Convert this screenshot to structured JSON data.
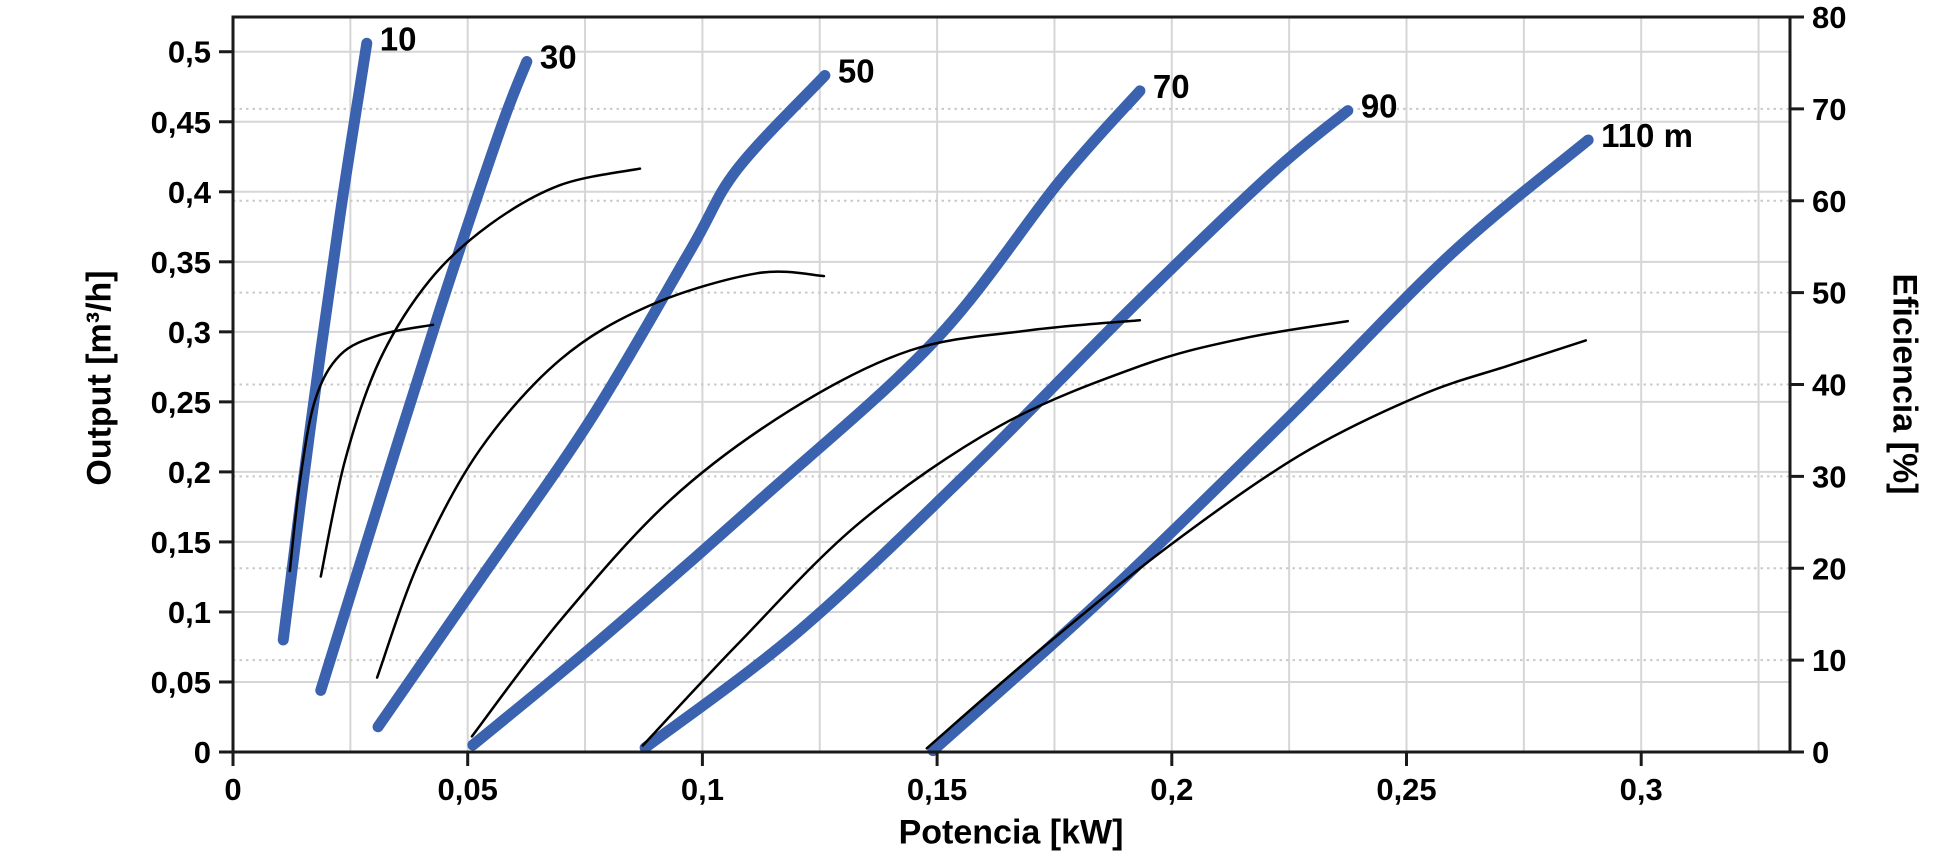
{
  "page": {
    "background": "#ffffff"
  },
  "colors": {
    "pump_curve": "#3A62AE",
    "efficiency_curve": "#000000",
    "frame": "#1a1a1a",
    "grid_solid": "#d6d6d6",
    "grid_dotted": "#c9c9c9",
    "text": "#000000"
  },
  "axes": {
    "x": {
      "title": "Potencia [kW]",
      "min": 0,
      "max": 0.3317,
      "ticks": [
        {
          "v": 0.0,
          "label": "0"
        },
        {
          "v": 0.05,
          "label": "0,05"
        },
        {
          "v": 0.1,
          "label": "0,1"
        },
        {
          "v": 0.15,
          "label": "0,15"
        },
        {
          "v": 0.2,
          "label": "0,2"
        },
        {
          "v": 0.25,
          "label": "0,25"
        },
        {
          "v": 0.3,
          "label": "0,3"
        }
      ],
      "minor_grid_step": 0.025
    },
    "y_left": {
      "title": "Output [m³/h]",
      "min": 0,
      "max": 0.5248,
      "ticks": [
        {
          "v": 0.0,
          "label": "0"
        },
        {
          "v": 0.05,
          "label": "0,05"
        },
        {
          "v": 0.1,
          "label": "0,1"
        },
        {
          "v": 0.15,
          "label": "0,15"
        },
        {
          "v": 0.2,
          "label": "0,2"
        },
        {
          "v": 0.25,
          "label": "0,25"
        },
        {
          "v": 0.3,
          "label": "0,3"
        },
        {
          "v": 0.35,
          "label": "0,35"
        },
        {
          "v": 0.4,
          "label": "0,4"
        },
        {
          "v": 0.45,
          "label": "0,45"
        },
        {
          "v": 0.5,
          "label": "0,5"
        }
      ]
    },
    "y_right": {
      "title": "Eficiencia [%]",
      "min": 0,
      "max": 80,
      "ticks": [
        {
          "v": 0,
          "label": "0"
        },
        {
          "v": 10,
          "label": "10"
        },
        {
          "v": 20,
          "label": "20"
        },
        {
          "v": 30,
          "label": "30"
        },
        {
          "v": 40,
          "label": "40"
        },
        {
          "v": 50,
          "label": "50"
        },
        {
          "v": 60,
          "label": "60"
        },
        {
          "v": 70,
          "label": "70"
        },
        {
          "v": 80,
          "label": "80"
        }
      ]
    }
  },
  "chart_data": {
    "type": "line",
    "title": "",
    "xlabel": "Potencia [kW]",
    "ylabel_left": "Output [m³/h]",
    "ylabel_right": "Eficiencia [%]",
    "xlim": [
      0,
      0.3317
    ],
    "ylim_left": [
      0,
      0.5248
    ],
    "ylim_right": [
      0,
      80
    ],
    "grid": {
      "vertical": "solid every 0.025 kW",
      "horizontal_solid": "every 0.05 m3/h",
      "horizontal_dotted": "every 10 % efficiency"
    },
    "legend_position": "labels at curve tops",
    "series": [
      {
        "id": "pump-10",
        "label": "10",
        "axis": "left",
        "role": "pump-curve",
        "unit": "m3/h vs kW",
        "points": [
          [
            0.0107,
            0.08
          ],
          [
            0.0164,
            0.23
          ],
          [
            0.0228,
            0.383
          ],
          [
            0.0271,
            0.476
          ],
          [
            0.0285,
            0.506
          ]
        ]
      },
      {
        "id": "pump-30",
        "label": "30",
        "axis": "left",
        "role": "pump-curve",
        "unit": "m3/h vs kW",
        "points": [
          [
            0.0187,
            0.044
          ],
          [
            0.0313,
            0.18
          ],
          [
            0.0441,
            0.316
          ],
          [
            0.0569,
            0.444
          ],
          [
            0.0626,
            0.493
          ]
        ]
      },
      {
        "id": "pump-50",
        "label": "50",
        "axis": "left",
        "role": "pump-curve",
        "unit": "m3/h vs kW",
        "points": [
          [
            0.0309,
            0.018
          ],
          [
            0.0526,
            0.123
          ],
          [
            0.0761,
            0.237
          ],
          [
            0.0974,
            0.358
          ],
          [
            0.1074,
            0.416
          ],
          [
            0.1261,
            0.483
          ]
        ]
      },
      {
        "id": "pump-70",
        "label": "70",
        "axis": "left",
        "role": "pump-curve",
        "unit": "m3/h vs kW",
        "points": [
          [
            0.0511,
            0.005
          ],
          [
            0.0782,
            0.08
          ],
          [
            0.1123,
            0.18
          ],
          [
            0.1496,
            0.294
          ],
          [
            0.1762,
            0.408
          ],
          [
            0.1932,
            0.472
          ]
        ]
      },
      {
        "id": "pump-90",
        "label": "90",
        "axis": "left",
        "role": "pump-curve",
        "unit": "m3/h vs kW",
        "points": [
          [
            0.0878,
            0.003
          ],
          [
            0.1208,
            0.087
          ],
          [
            0.157,
            0.201
          ],
          [
            0.1911,
            0.316
          ],
          [
            0.2209,
            0.412
          ],
          [
            0.2375,
            0.458
          ]
        ]
      },
      {
        "id": "pump-110",
        "label": "110 m",
        "axis": "left",
        "role": "pump-curve",
        "unit": "m3/h vs kW",
        "points": [
          [
            0.1491,
            0.001
          ],
          [
            0.1847,
            0.108
          ],
          [
            0.2252,
            0.24
          ],
          [
            0.2593,
            0.355
          ],
          [
            0.2887,
            0.437
          ]
        ]
      },
      {
        "id": "eff-10",
        "label": "",
        "axis": "right",
        "role": "efficiency-curve",
        "unit": "% vs kW",
        "points": [
          [
            0.0121,
            19.7
          ],
          [
            0.0143,
            29.6
          ],
          [
            0.0175,
            38.3
          ],
          [
            0.0228,
            43.2
          ],
          [
            0.0313,
            45.4
          ],
          [
            0.0426,
            46.5
          ]
        ]
      },
      {
        "id": "eff-30",
        "label": "",
        "axis": "right",
        "role": "efficiency-curve",
        "unit": "% vs kW",
        "points": [
          [
            0.0187,
            19.1
          ],
          [
            0.0239,
            31.8
          ],
          [
            0.0313,
            42.7
          ],
          [
            0.042,
            51.4
          ],
          [
            0.0547,
            57.4
          ],
          [
            0.0697,
            61.7
          ],
          [
            0.0867,
            63.5
          ]
        ]
      },
      {
        "id": "eff-50",
        "label": "",
        "axis": "right",
        "role": "efficiency-curve",
        "unit": "% vs kW",
        "points": [
          [
            0.0307,
            8.1
          ],
          [
            0.0398,
            20.9
          ],
          [
            0.0526,
            32.9
          ],
          [
            0.0697,
            42.7
          ],
          [
            0.0888,
            48.6
          ],
          [
            0.1116,
            52.1
          ],
          [
            0.1259,
            51.8
          ]
        ]
      },
      {
        "id": "eff-70",
        "label": "",
        "axis": "right",
        "role": "efficiency-curve",
        "unit": "% vs kW",
        "points": [
          [
            0.0509,
            1.7
          ],
          [
            0.0697,
            14.3
          ],
          [
            0.0931,
            27.4
          ],
          [
            0.1187,
            37.2
          ],
          [
            0.1442,
            43.7
          ],
          [
            0.1698,
            45.9
          ],
          [
            0.1932,
            47.0
          ]
        ]
      },
      {
        "id": "eff-90",
        "label": "",
        "axis": "right",
        "role": "efficiency-curve",
        "unit": "% vs kW",
        "points": [
          [
            0.0873,
            0.7
          ],
          [
            0.108,
            12.0
          ],
          [
            0.1336,
            25.0
          ],
          [
            0.1634,
            35.5
          ],
          [
            0.1932,
            42.0
          ],
          [
            0.215,
            45.0
          ],
          [
            0.2375,
            46.9
          ]
        ]
      },
      {
        "id": "eff-110",
        "label": "",
        "axis": "right",
        "role": "efficiency-curve",
        "unit": "% vs kW",
        "points": [
          [
            0.1478,
            0.4
          ],
          [
            0.1719,
            11.1
          ],
          [
            0.1996,
            22.5
          ],
          [
            0.2273,
            32.3
          ],
          [
            0.2529,
            38.8
          ],
          [
            0.272,
            42.1
          ],
          [
            0.2882,
            44.8
          ]
        ]
      }
    ]
  }
}
